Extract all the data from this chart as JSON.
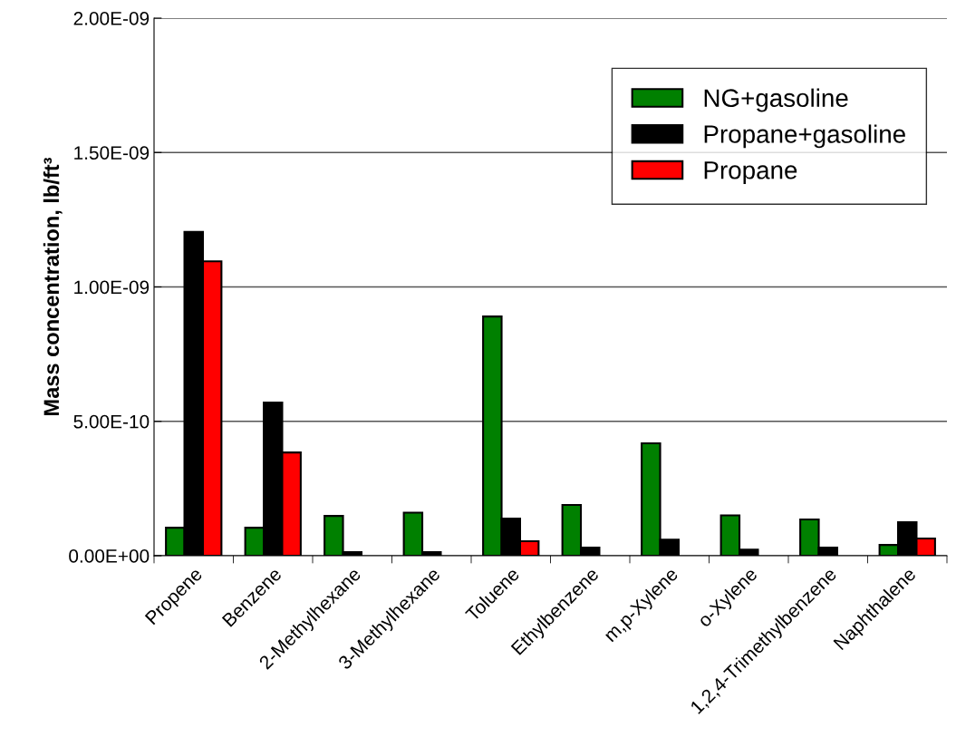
{
  "chart_data": {
    "type": "bar",
    "categories": [
      "Propene",
      "Benzene",
      "2-Methylhexane",
      "3-Methylhexane",
      "Toluene",
      "Ethylbenzene",
      "m,p-Xylene",
      "o-Xylene",
      "1,2,4-Trimethylbenzene",
      "Naphthalene"
    ],
    "series": [
      {
        "name": "NG+gasoline",
        "color": "#008000",
        "values": [
          1.04e-10,
          1.04e-10,
          1.48e-10,
          1.6e-10,
          8.9e-10,
          1.89e-10,
          4.18e-10,
          1.5e-10,
          1.35e-10,
          4e-11
        ]
      },
      {
        "name": "Propane+gasoline",
        "color": "#000000",
        "values": [
          1.205e-09,
          5.7e-10,
          1.3e-11,
          1.3e-11,
          1.38e-10,
          3e-11,
          6e-11,
          2.3e-11,
          3e-11,
          1.25e-10
        ]
      },
      {
        "name": "Propane",
        "color": "#ff0000",
        "values": [
          1.095e-09,
          3.84e-10,
          null,
          null,
          5.4e-11,
          null,
          null,
          null,
          null,
          6.4e-11
        ]
      }
    ],
    "ylabel": "Mass concentration, lb/ft³",
    "ylim": [
      0,
      2e-09
    ],
    "yticks": [
      {
        "value": 0,
        "label": "0.00E+00"
      },
      {
        "value": 5e-10,
        "label": "5.00E-10"
      },
      {
        "value": 1e-09,
        "label": "1.00E-09"
      },
      {
        "value": 1.5e-09,
        "label": "1.50E-09"
      },
      {
        "value": 2e-09,
        "label": "2.00E-09"
      }
    ],
    "grid": "y",
    "legend": "top right"
  }
}
